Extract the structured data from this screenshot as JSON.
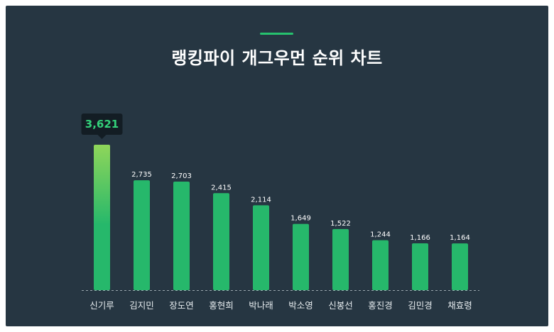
{
  "colors": {
    "background": "#263642",
    "bar": "#26b86b",
    "bar_top_gradient_start": "#8fd65a",
    "tooltip_bg": "#131d24",
    "tooltip_text": "#33d17a",
    "text": "#ffffff"
  },
  "chart_data": {
    "type": "bar",
    "title": "랭킹파이 개그우먼 순위 차트",
    "xlabel": "",
    "ylabel": "",
    "ylim": [
      0,
      3621
    ],
    "grid": false,
    "categories": [
      "신기루",
      "김지민",
      "장도연",
      "홍현희",
      "박나래",
      "박소영",
      "신봉선",
      "홍진경",
      "김민경",
      "채효령"
    ],
    "values": [
      3621,
      2735,
      2703,
      2415,
      2114,
      1649,
      1522,
      1244,
      1166,
      1164
    ],
    "value_labels": [
      "3,621",
      "2,735",
      "2,703",
      "2,415",
      "2,114",
      "1,649",
      "1,522",
      "1,244",
      "1,166",
      "1,164"
    ],
    "highlight_index": 0
  }
}
